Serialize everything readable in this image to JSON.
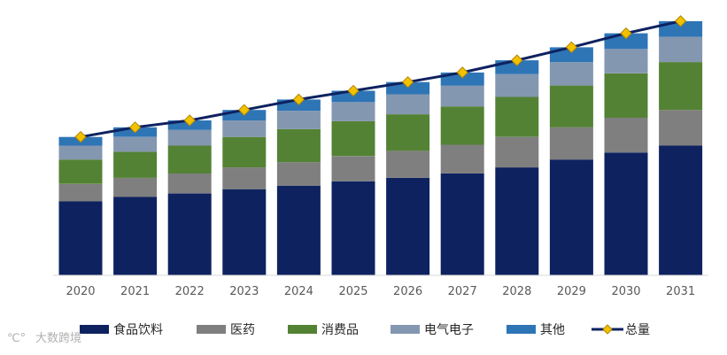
{
  "chart_data": {
    "type": "bar",
    "stacked": true,
    "title": "",
    "xlabel": "",
    "ylabel": "",
    "categories": [
      "2020",
      "2021",
      "2022",
      "2023",
      "2024",
      "2025",
      "2026",
      "2027",
      "2028",
      "2029",
      "2030",
      "2031"
    ],
    "series": [
      {
        "name": "食品饮料",
        "color": "#0e2260",
        "values": [
          85,
          90,
          94,
          99,
          103,
          108,
          112,
          117,
          124,
          133,
          141,
          149
        ]
      },
      {
        "name": "医药",
        "color": "#7f7f7f",
        "values": [
          20,
          22,
          23,
          25,
          27,
          29,
          31,
          33,
          35,
          37,
          40,
          41
        ]
      },
      {
        "name": "消费品",
        "color": "#548235",
        "values": [
          28,
          30,
          32,
          35,
          38,
          40,
          42,
          44,
          46,
          48,
          51,
          55
        ]
      },
      {
        "name": "电气电子",
        "color": "#8497b0",
        "values": [
          16,
          17,
          18,
          19,
          21,
          22,
          23,
          24,
          26,
          27,
          28,
          29
        ]
      },
      {
        "name": "其他",
        "color": "#2e75b6",
        "values": [
          10,
          11,
          11,
          12,
          13,
          13,
          14,
          15,
          16,
          17,
          18,
          18
        ]
      }
    ],
    "line": {
      "name": "总量",
      "color": "#0e2260",
      "marker_color": "#f2c100",
      "values": [
        159,
        170,
        178,
        190,
        202,
        212,
        222,
        233,
        247,
        262,
        278,
        292
      ]
    },
    "ylim": [
      0,
      300
    ],
    "gridlines": false,
    "legend_position": "bottom"
  },
  "watermark": {
    "text": "大数跨境"
  }
}
